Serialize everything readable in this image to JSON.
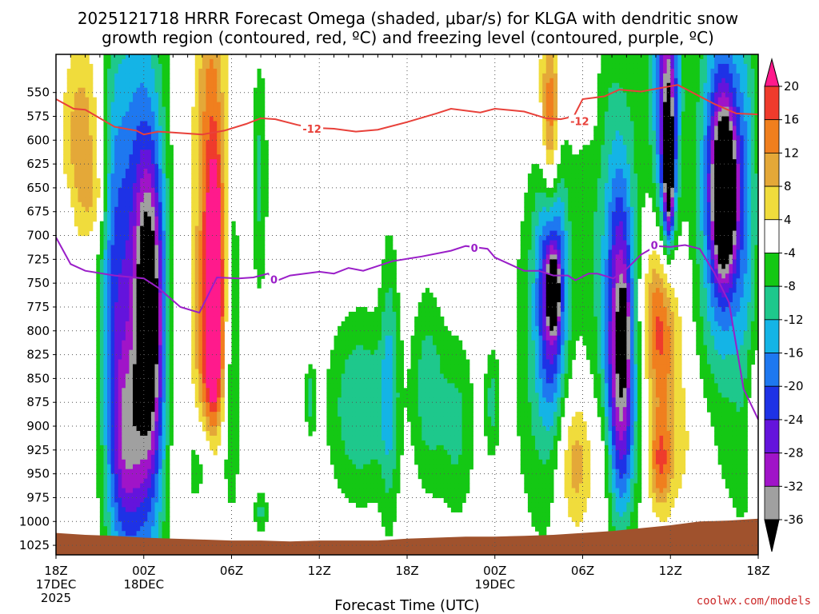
{
  "title": {
    "line1": "2025121718 HRRR Forecast Omega (shaded, μbar/s) for KLGA with dendritic snow",
    "line2": "growth region (contoured, red, ºC) and freezing level (contoured, purple, ºC)"
  },
  "credit": "coolwx.com/models",
  "chart_data": {
    "type": "heatmap",
    "title": "2025121718 HRRR Forecast Omega (shaded, μbar/s) for KLGA with dendritic snow growth region (contoured, red, ºC) and freezing level (contoured, purple, ºC)",
    "xlabel": "Forecast Time (UTC)",
    "ylabel": "",
    "x_range_hours": [
      0,
      48
    ],
    "y_range_mb": [
      1035,
      510
    ],
    "y_ticks": [
      550,
      575,
      600,
      625,
      650,
      675,
      700,
      725,
      750,
      775,
      800,
      825,
      850,
      875,
      900,
      925,
      950,
      975,
      1000,
      1025
    ],
    "x_ticks": [
      {
        "hour": 0,
        "label": "18Z",
        "sub1": "17DEC",
        "sub2": "2025"
      },
      {
        "hour": 6,
        "label": "00Z",
        "sub1": "18DEC",
        "sub2": ""
      },
      {
        "hour": 12,
        "label": "06Z",
        "sub1": "",
        "sub2": ""
      },
      {
        "hour": 18,
        "label": "12Z",
        "sub1": "",
        "sub2": ""
      },
      {
        "hour": 24,
        "label": "18Z",
        "sub1": "",
        "sub2": ""
      },
      {
        "hour": 30,
        "label": "00Z",
        "sub1": "19DEC",
        "sub2": ""
      },
      {
        "hour": 36,
        "label": "06Z",
        "sub1": "",
        "sub2": ""
      },
      {
        "hour": 42,
        "label": "12Z",
        "sub1": "",
        "sub2": ""
      },
      {
        "hour": 48,
        "label": "18Z",
        "sub1": "",
        "sub2": ""
      }
    ],
    "colorbar": {
      "labels": [
        "20",
        "16",
        "12",
        "8",
        "4",
        "-4",
        "-8",
        "-12",
        "-16",
        "-20",
        "-24",
        "-28",
        "-32",
        "-36"
      ],
      "bins": [
        {
          "color": "#ff1a8c"
        },
        {
          "color": "#ef3b2c"
        },
        {
          "color": "#f07f1e"
        },
        {
          "color": "#e4a838"
        },
        {
          "color": "#f0dc3c"
        },
        {
          "color": "#ffffff"
        },
        {
          "color": "#14c814"
        },
        {
          "color": "#1ec88c"
        },
        {
          "color": "#14b4e6"
        },
        {
          "color": "#1e78f0"
        },
        {
          "color": "#1e32e6"
        },
        {
          "color": "#6414dc"
        },
        {
          "color": "#a014c8"
        },
        {
          "color": "#a0a0a0"
        },
        {
          "color": "#000000"
        }
      ]
    },
    "omega_blobs": [
      {
        "hour": 1.8,
        "mb": 595,
        "sx": 0.9,
        "sy": 70,
        "value": 11
      },
      {
        "hour": 2.7,
        "mb": 660,
        "sx": 0.6,
        "sy": 30,
        "value": 6
      },
      {
        "hour": 0.8,
        "mb": 760,
        "sx": 0.5,
        "sy": 90,
        "value": 5
      },
      {
        "hour": 0.8,
        "mb": 730,
        "sx": 0.35,
        "sy": 55,
        "value": -9
      },
      {
        "hour": 5.6,
        "mb": 780,
        "sx": 1.4,
        "sy": 240,
        "value": -24
      },
      {
        "hour": 6.4,
        "mb": 790,
        "sx": 0.65,
        "sy": 110,
        "value": -29
      },
      {
        "hour": 4.8,
        "mb": 920,
        "sx": 0.7,
        "sy": 70,
        "value": -14
      },
      {
        "hour": 3.9,
        "mb": 760,
        "sx": 0.6,
        "sy": 180,
        "value": -10
      },
      {
        "hour": 8.3,
        "mb": 820,
        "sx": 0.5,
        "sy": 160,
        "value": 5
      },
      {
        "hour": 10.6,
        "mb": 680,
        "sx": 0.8,
        "sy": 210,
        "value": 16
      },
      {
        "hour": 10.9,
        "mb": 760,
        "sx": 0.4,
        "sy": 90,
        "value": 19
      },
      {
        "hour": 10.4,
        "mb": 860,
        "sx": 0.6,
        "sy": 90,
        "value": 8
      },
      {
        "hour": 12.0,
        "mb": 790,
        "sx": 0.45,
        "sy": 150,
        "value": -9
      },
      {
        "hour": 10.3,
        "mb": 940,
        "sx": 0.9,
        "sy": 45,
        "value": -14
      },
      {
        "hour": 13.9,
        "mb": 640,
        "sx": 0.4,
        "sy": 90,
        "value": -9
      },
      {
        "hour": 14.0,
        "mb": 990,
        "sx": 0.35,
        "sy": 15,
        "value": -9
      },
      {
        "hour": 20.8,
        "mb": 880,
        "sx": 1.6,
        "sy": 70,
        "value": -12
      },
      {
        "hour": 22.8,
        "mb": 850,
        "sx": 0.45,
        "sy": 110,
        "value": -10
      },
      {
        "hour": 25.4,
        "mb": 860,
        "sx": 0.8,
        "sy": 75,
        "value": -10
      },
      {
        "hour": 27.4,
        "mb": 900,
        "sx": 0.9,
        "sy": 70,
        "value": -9
      },
      {
        "hour": 17.4,
        "mb": 870,
        "sx": 0.25,
        "sy": 25,
        "value": -9
      },
      {
        "hour": 29.8,
        "mb": 875,
        "sx": 0.35,
        "sy": 40,
        "value": -9
      },
      {
        "hour": 33.8,
        "mb": 600,
        "sx": 0.4,
        "sy": 70,
        "value": 16
      },
      {
        "hour": 33.6,
        "mb": 560,
        "sx": 0.7,
        "sy": 80,
        "value": 6
      },
      {
        "hour": 33.9,
        "mb": 745,
        "sx": 0.7,
        "sy": 95,
        "value": -25
      },
      {
        "hour": 34.0,
        "mb": 760,
        "sx": 0.25,
        "sy": 22,
        "value": -40
      },
      {
        "hour": 33.2,
        "mb": 820,
        "sx": 1.4,
        "sy": 150,
        "value": -9
      },
      {
        "hour": 35.5,
        "mb": 935,
        "sx": 0.9,
        "sy": 55,
        "value": 12
      },
      {
        "hour": 37.2,
        "mb": 640,
        "sx": 1.1,
        "sy": 180,
        "value": -9
      },
      {
        "hour": 36.8,
        "mb": 560,
        "sx": 0.55,
        "sy": 70,
        "value": 5
      },
      {
        "hour": 38.6,
        "mb": 785,
        "sx": 0.65,
        "sy": 110,
        "value": -27
      },
      {
        "hour": 38.8,
        "mb": 805,
        "sx": 0.18,
        "sy": 25,
        "value": -40
      },
      {
        "hour": 37.6,
        "mb": 930,
        "sx": 0.5,
        "sy": 50,
        "value": 6
      },
      {
        "hour": 38.6,
        "mb": 900,
        "sx": 0.9,
        "sy": 80,
        "value": -14
      },
      {
        "hour": 41.4,
        "mb": 790,
        "sx": 0.8,
        "sy": 65,
        "value": 18
      },
      {
        "hour": 41.2,
        "mb": 755,
        "sx": 1.3,
        "sy": 120,
        "value": 9
      },
      {
        "hour": 41.3,
        "mb": 940,
        "sx": 0.55,
        "sy": 35,
        "value": 13
      },
      {
        "hour": 42.8,
        "mb": 920,
        "sx": 1.6,
        "sy": 60,
        "value": 6
      },
      {
        "hour": 41.8,
        "mb": 560,
        "sx": 0.55,
        "sy": 130,
        "value": -28
      },
      {
        "hour": 41.9,
        "mb": 630,
        "sx": 0.22,
        "sy": 45,
        "value": -33
      },
      {
        "hour": 40.6,
        "mb": 640,
        "sx": 1.3,
        "sy": 200,
        "value": -9
      },
      {
        "hour": 45.6,
        "mb": 640,
        "sx": 0.85,
        "sy": 100,
        "value": -27
      },
      {
        "hour": 45.7,
        "mb": 660,
        "sx": 0.45,
        "sy": 45,
        "value": -40
      },
      {
        "hour": 45.3,
        "mb": 700,
        "sx": 1.8,
        "sy": 230,
        "value": -9
      },
      {
        "hour": 47.2,
        "mb": 680,
        "sx": 0.6,
        "sy": 180,
        "value": -8
      },
      {
        "hour": 47.6,
        "mb": 870,
        "sx": 0.35,
        "sy": 50,
        "value": 5
      }
    ],
    "dendritic_minus12_contour": {
      "label": "-12",
      "points": [
        [
          0,
          557
        ],
        [
          1.2,
          567
        ],
        [
          2,
          568
        ],
        [
          4,
          586
        ],
        [
          5.5,
          590
        ],
        [
          6,
          594
        ],
        [
          7,
          591
        ],
        [
          8,
          592
        ],
        [
          10,
          594
        ],
        [
          11.5,
          590
        ],
        [
          13,
          583
        ],
        [
          14,
          577
        ],
        [
          15,
          578
        ],
        [
          16.5,
          584
        ],
        [
          17.5,
          587
        ],
        [
          19,
          588
        ],
        [
          20.5,
          591
        ],
        [
          22,
          589
        ],
        [
          24,
          581
        ],
        [
          26,
          572
        ],
        [
          27,
          567
        ],
        [
          29,
          571
        ],
        [
          30,
          567
        ],
        [
          32,
          570
        ],
        [
          33.5,
          577
        ],
        [
          34.5,
          578
        ],
        [
          35.4,
          575
        ],
        [
          36,
          557
        ],
        [
          37.5,
          554
        ],
        [
          38.5,
          547
        ],
        [
          40,
          549
        ],
        [
          42.5,
          542
        ],
        [
          43,
          546
        ],
        [
          45,
          562
        ],
        [
          46.5,
          572
        ],
        [
          48,
          573
        ]
      ]
    },
    "freezing_level_contour": {
      "label": "0",
      "points": [
        [
          0,
          702
        ],
        [
          1,
          730
        ],
        [
          2,
          737
        ],
        [
          4,
          742
        ],
        [
          6,
          745
        ],
        [
          7,
          755
        ],
        [
          8.5,
          775
        ],
        [
          9.8,
          781
        ],
        [
          11,
          744
        ],
        [
          12.5,
          745
        ],
        [
          13.5,
          744
        ],
        [
          14.5,
          740
        ],
        [
          15,
          748
        ],
        [
          16,
          742
        ],
        [
          18,
          738
        ],
        [
          19,
          740
        ],
        [
          20,
          734
        ],
        [
          21,
          737
        ],
        [
          23,
          727
        ],
        [
          25,
          722
        ],
        [
          27,
          716
        ],
        [
          28,
          711
        ],
        [
          29.5,
          714
        ],
        [
          30,
          723
        ],
        [
          31,
          730
        ],
        [
          32,
          737
        ],
        [
          33,
          737
        ],
        [
          34,
          742
        ],
        [
          35,
          742
        ],
        [
          35.5,
          747
        ],
        [
          36.4,
          740
        ],
        [
          37,
          740
        ],
        [
          38.1,
          745
        ],
        [
          39,
          735
        ],
        [
          40,
          720
        ],
        [
          41,
          711
        ],
        [
          42,
          712
        ],
        [
          43,
          710
        ],
        [
          44,
          714
        ],
        [
          45,
          739
        ],
        [
          46,
          770
        ],
        [
          47,
          861
        ],
        [
          48,
          893
        ]
      ]
    },
    "terrain": {
      "color": "#a0522d",
      "surface_mb": [
        [
          0,
          1012
        ],
        [
          2,
          1014
        ],
        [
          4,
          1015
        ],
        [
          6,
          1017
        ],
        [
          8,
          1018
        ],
        [
          10,
          1019
        ],
        [
          12,
          1020
        ],
        [
          14,
          1020
        ],
        [
          16,
          1021
        ],
        [
          18,
          1020
        ],
        [
          22,
          1020
        ],
        [
          24,
          1018
        ],
        [
          26,
          1017
        ],
        [
          28,
          1016
        ],
        [
          30,
          1016
        ],
        [
          32,
          1015
        ],
        [
          34,
          1014
        ],
        [
          36,
          1012
        ],
        [
          38,
          1010
        ],
        [
          40,
          1007
        ],
        [
          42,
          1004
        ],
        [
          44,
          1000
        ],
        [
          46,
          999
        ],
        [
          48,
          997
        ]
      ]
    }
  }
}
